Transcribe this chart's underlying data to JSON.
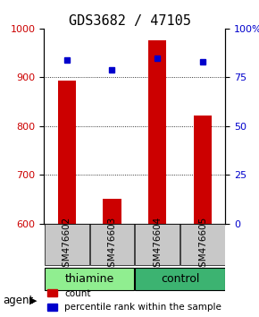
{
  "title": "GDS3682 / 47105",
  "samples": [
    "GSM476602",
    "GSM476603",
    "GSM476604",
    "GSM476605"
  ],
  "groups": [
    "thiamine",
    "thiamine",
    "control",
    "control"
  ],
  "group_colors": {
    "thiamine": "#90EE90",
    "control": "#3CB371"
  },
  "bar_values": [
    893,
    651,
    975,
    821
  ],
  "percentile_values": [
    84,
    79,
    85,
    83
  ],
  "ylim_left": [
    600,
    1000
  ],
  "ylim_right": [
    0,
    100
  ],
  "yticks_left": [
    600,
    700,
    800,
    900,
    1000
  ],
  "yticks_right": [
    0,
    25,
    50,
    75,
    100
  ],
  "bar_color": "#CC0000",
  "dot_color": "#0000CC",
  "bar_width": 0.4,
  "background_color": "#ffffff",
  "plot_bg": "#ffffff",
  "grid_color": "#000000",
  "sample_label_fontsize": 7.5,
  "title_fontsize": 11,
  "legend_fontsize": 7.5,
  "agent_label": "agent",
  "group_label_fontsize": 9
}
